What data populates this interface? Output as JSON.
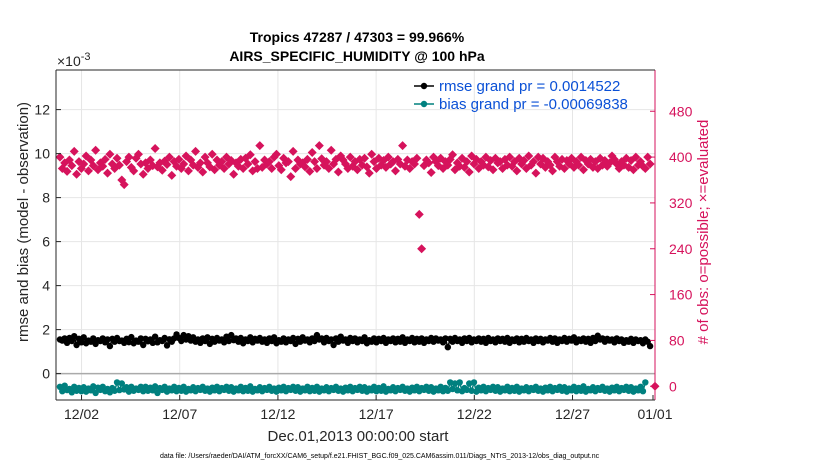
{
  "chart_data": {
    "type": "scatter",
    "title": "Tropics 47287 / 47303 = 99.966%",
    "subtitle": "AIRS_SPECIFIC_HUMIDITY @ 100 hPa",
    "xlabel": "Dec.01,2013 00:00:00 start",
    "ylabel_left": "rmse and bias (model - observation)",
    "ylabel_right": "# of obs: o=possible; ×=evaluated",
    "left_exponent": "×10",
    "left_exponent_power": "-3",
    "ylim_left": [
      -0.0012,
      0.0138
    ],
    "ylim_right": [
      -24,
      552
    ],
    "xlim": [
      0.7,
      31.2
    ],
    "left_ticks": [
      0,
      2,
      4,
      6,
      8,
      10,
      12
    ],
    "right_ticks": [
      0,
      80,
      160,
      240,
      320,
      400,
      480
    ],
    "x_ticks": [
      {
        "value": 2,
        "label": "12/02"
      },
      {
        "value": 7,
        "label": "12/07"
      },
      {
        "value": 12,
        "label": "12/12"
      },
      {
        "value": 17,
        "label": "12/17"
      },
      {
        "value": 22,
        "label": "12/22"
      },
      {
        "value": 27,
        "label": "12/27"
      },
      {
        "value": 32,
        "label": "01/01"
      }
    ],
    "legend": [
      {
        "label": "rmse grand pr = 0.0014522",
        "color": "#000000"
      },
      {
        "label": "bias grand pr = -0.00069838",
        "color": "#00807f"
      }
    ],
    "colors": {
      "rmse": "#000000",
      "bias": "#00807f",
      "obs": "#d6135c",
      "zero_line": "#aaaaaa"
    },
    "possible_obs": [
      400,
      380,
      390,
      375,
      395,
      385,
      410,
      370,
      392,
      380,
      388,
      402,
      376,
      395,
      385,
      412,
      378,
      390,
      384,
      396,
      372,
      405,
      388,
      380,
      398,
      386,
      360,
      352,
      392,
      400,
      382,
      376,
      398,
      405,
      388,
      370,
      390,
      380,
      395,
      385,
      415,
      383,
      390,
      377,
      393,
      387,
      400,
      368,
      392,
      384,
      396,
      380,
      388,
      402,
      376,
      395,
      386,
      410,
      382,
      390,
      374,
      400,
      390,
      383,
      405,
      378,
      395,
      386,
      392,
      380,
      400,
      388,
      394,
      370,
      390,
      384,
      396,
      380,
      398,
      388,
      404,
      376,
      392,
      380,
      420,
      382,
      395,
      388,
      392,
      380,
      400,
      405,
      385,
      378,
      398,
      390,
      392,
      366,
      410,
      380,
      395,
      388,
      390,
      383,
      396,
      375,
      408,
      392,
      380,
      420,
      397,
      386,
      392,
      380,
      412,
      388,
      396,
      374,
      402,
      395,
      388,
      380,
      400,
      384,
      392,
      378,
      396,
      386,
      398,
      383,
      372,
      405,
      392,
      380,
      398,
      386,
      394,
      382,
      400,
      388,
      392,
      376,
      396,
      388,
      420,
      384,
      395,
      380,
      392,
      388,
      398,
      300,
      240,
      385,
      395,
      390,
      373,
      400,
      392,
      385,
      398,
      380,
      392,
      386,
      396,
      404,
      378,
      390,
      384,
      398,
      382,
      392,
      374,
      402,
      388,
      396,
      380,
      392,
      386,
      400,
      383,
      394,
      378,
      398,
      390,
      392,
      380,
      396,
      386,
      400,
      384,
      392,
      376,
      398,
      388,
      394,
      380,
      402,
      386,
      392,
      372,
      400,
      388,
      398,
      382,
      392,
      386,
      376,
      400,
      392,
      384,
      396,
      380,
      394,
      388,
      398,
      382,
      392,
      386,
      400,
      378,
      394,
      388,
      396,
      382,
      392,
      380,
      398,
      386,
      394,
      384,
      390,
      402,
      396,
      388,
      380,
      392,
      386,
      398,
      382,
      394,
      378,
      400,
      386,
      392,
      384,
      380,
      400,
      388
    ],
    "rmse": [
      0.00155,
      0.0015,
      0.0016,
      0.0014,
      0.00162,
      0.00148,
      0.0017,
      0.0013,
      0.00158,
      0.00142,
      0.00165,
      0.00138,
      0.0015,
      0.00145,
      0.0016,
      0.00135,
      0.00152,
      0.00148,
      0.0016,
      0.00142,
      0.00155,
      0.00125,
      0.00158,
      0.00145,
      0.00162,
      0.00148,
      0.0015,
      0.0014,
      0.00158,
      0.00143,
      0.00166,
      0.00138,
      0.0015,
      0.00145,
      0.0016,
      0.0013,
      0.00158,
      0.00147,
      0.00155,
      0.0014,
      0.00168,
      0.00142,
      0.00152,
      0.00148,
      0.00162,
      0.00128,
      0.00156,
      0.00145,
      0.0016,
      0.00178,
      0.00162,
      0.00148,
      0.00175,
      0.00155,
      0.0017,
      0.0015,
      0.00165,
      0.00145,
      0.00155,
      0.0014,
      0.0016,
      0.00148,
      0.00165,
      0.00135,
      0.00158,
      0.00145,
      0.00162,
      0.0015,
      0.00155,
      0.00142,
      0.00168,
      0.00148,
      0.00175,
      0.00152,
      0.0016,
      0.00145,
      0.00162,
      0.00138,
      0.00155,
      0.00148,
      0.00165,
      0.00142,
      0.00158,
      0.0015,
      0.00162,
      0.00145,
      0.00155,
      0.0014,
      0.0016,
      0.00148,
      0.00165,
      0.00138,
      0.00152,
      0.00145,
      0.0016,
      0.00142,
      0.00155,
      0.00148,
      0.00162,
      0.00135,
      0.00158,
      0.00145,
      0.00165,
      0.0015,
      0.00155,
      0.00142,
      0.0016,
      0.00148,
      0.00175,
      0.00155,
      0.0016,
      0.00142,
      0.00162,
      0.00148,
      0.00155,
      0.0013,
      0.0016,
      0.00145,
      0.00168,
      0.0015,
      0.00155,
      0.0014,
      0.00162,
      0.00148,
      0.0016,
      0.00142,
      0.00155,
      0.00148,
      0.00165,
      0.00138,
      0.00152,
      0.00145,
      0.0016,
      0.00142,
      0.00158,
      0.00148,
      0.00162,
      0.0014,
      0.00155,
      0.00148,
      0.0016,
      0.00142,
      0.00158,
      0.00145,
      0.00165,
      0.0014,
      0.00155,
      0.00148,
      0.00162,
      0.00142,
      0.00158,
      0.00145,
      0.0016,
      0.0014,
      0.00155,
      0.00148,
      0.00162,
      0.00145,
      0.0016,
      0.0015,
      0.00155,
      0.00142,
      0.0016,
      0.0012,
      0.00158,
      0.00145,
      0.00162,
      0.00148,
      0.00155,
      0.0014,
      0.0016,
      0.00148,
      0.00162,
      0.00142,
      0.00155,
      0.00148,
      0.0016,
      0.00145,
      0.00158,
      0.0014,
      0.00162,
      0.00148,
      0.00155,
      0.00142,
      0.0016,
      0.00148,
      0.00158,
      0.00145,
      0.00162,
      0.0014,
      0.00155,
      0.00148,
      0.0016,
      0.00142,
      0.00158,
      0.00145,
      0.00162,
      0.00148,
      0.00155,
      0.0014,
      0.0016,
      0.00148,
      0.00158,
      0.00142,
      0.00155,
      0.0015,
      0.00162,
      0.00145,
      0.0016,
      0.0014,
      0.00155,
      0.00148,
      0.00162,
      0.00145,
      0.00158,
      0.0015,
      0.00165,
      0.00142,
      0.00155,
      0.00148,
      0.0016,
      0.00145,
      0.00158,
      0.0014,
      0.00162,
      0.00148,
      0.00172,
      0.00155,
      0.0016,
      0.00145,
      0.00158,
      0.0015,
      0.00155,
      0.00142,
      0.0016,
      0.00148,
      0.00155,
      0.0014,
      0.00152,
      0.00145,
      0.00158,
      0.0014,
      0.00155,
      0.00148,
      0.00152,
      0.00138,
      0.00155,
      0.00145,
      0.00125
    ],
    "bias": [
      -0.0006,
      -0.0008,
      -0.00055,
      -0.00075,
      -0.0007,
      -0.00085,
      -0.0006,
      -0.00078,
      -0.00065,
      -0.0008,
      -0.00062,
      -0.00082,
      -0.00068,
      -0.00076,
      -0.00058,
      -0.00088,
      -0.00064,
      -0.00074,
      -0.0006,
      -0.0008,
      -0.0007,
      -0.00085,
      -0.00066,
      -0.00078,
      -0.0004,
      -0.00075,
      -0.00045,
      -0.00072,
      -0.00062,
      -0.00082,
      -0.0006,
      -0.00078,
      -0.00068,
      -0.00074,
      -0.0006,
      -0.0008,
      -0.0006,
      -0.00078,
      -0.00064,
      -0.00076,
      -0.00058,
      -0.00088,
      -0.00066,
      -0.00074,
      -0.0006,
      -0.00082,
      -0.00068,
      -0.00076,
      -0.0006,
      -0.0008,
      -0.00065,
      -0.00078,
      -0.0006,
      -0.00082,
      -0.0007,
      -0.00076,
      -0.00062,
      -0.0008,
      -0.00066,
      -0.00074,
      -0.0006,
      -0.00078,
      -0.00068,
      -0.00082,
      -0.00064,
      -0.00076,
      -0.0006,
      -0.0008,
      -0.00066,
      -0.00074,
      -0.0006,
      -0.00078,
      -0.00062,
      -0.00082,
      -0.00068,
      -0.00076,
      -0.0006,
      -0.0008,
      -0.00065,
      -0.00078,
      -0.00058,
      -0.00082,
      -0.0007,
      -0.00076,
      -0.00062,
      -0.0008,
      -0.00066,
      -0.00074,
      -0.0006,
      -0.00078,
      -0.00068,
      -0.00082,
      -0.00064,
      -0.00076,
      -0.0006,
      -0.0008,
      -0.00066,
      -0.00074,
      -0.0006,
      -0.00078,
      -0.00062,
      -0.00082,
      -0.00068,
      -0.00076,
      -0.0006,
      -0.0008,
      -0.00065,
      -0.00078,
      -0.0006,
      -0.00082,
      -0.00068,
      -0.00076,
      -0.00062,
      -0.0008,
      -0.00066,
      -0.00074,
      -0.0006,
      -0.00078,
      -0.00068,
      -0.00082,
      -0.00064,
      -0.00076,
      -0.0006,
      -0.0008,
      -0.00066,
      -0.00074,
      -0.0006,
      -0.00078,
      -0.00062,
      -0.00082,
      -0.00068,
      -0.00076,
      -0.0006,
      -0.0008,
      -0.00065,
      -0.00078,
      -0.00058,
      -0.00082,
      -0.0007,
      -0.00076,
      -0.00062,
      -0.0008,
      -0.00066,
      -0.00074,
      -0.0006,
      -0.00078,
      -0.00068,
      -0.00082,
      -0.00064,
      -0.00076,
      -0.0006,
      -0.0008,
      -0.00066,
      -0.00074,
      -0.0006,
      -0.00078,
      -0.00062,
      -0.00082,
      -0.00068,
      -0.00076,
      -0.0006,
      -0.0008,
      -0.00065,
      -0.00078,
      -0.0004,
      -0.0007,
      -0.00045,
      -0.00076,
      -0.0004,
      -0.0008,
      -0.00066,
      -0.00074,
      -0.00045,
      -0.00078,
      -0.0004,
      -0.00082,
      -0.00064,
      -0.00076,
      -0.0006,
      -0.0008,
      -0.00066,
      -0.00074,
      -0.0006,
      -0.00078,
      -0.00062,
      -0.00082,
      -0.00068,
      -0.00076,
      -0.0006,
      -0.0008,
      -0.00065,
      -0.00078,
      -0.0006,
      -0.00082,
      -0.00068,
      -0.00076,
      -0.00062,
      -0.0008,
      -0.00066,
      -0.00074,
      -0.0006,
      -0.00078,
      -0.00068,
      -0.00082,
      -0.00064,
      -0.00076,
      -0.0006,
      -0.0008,
      -0.00066,
      -0.00074,
      -0.0006,
      -0.00078,
      -0.00062,
      -0.00082,
      -0.00068,
      -0.00076,
      -0.0006,
      -0.0008,
      -0.00065,
      -0.00078,
      -0.00058,
      -0.00082,
      -0.0007,
      -0.00076,
      -0.00062,
      -0.0008,
      -0.00066,
      -0.00074,
      -0.0006,
      -0.00078,
      -0.00068,
      -0.00082,
      -0.00064,
      -0.00076,
      -0.0006,
      -0.0008,
      -0.00066,
      -0.00074,
      -0.0006,
      -0.00078,
      -0.00062,
      -0.00082,
      -0.00068,
      -0.00076,
      -0.0006,
      -0.0008,
      -0.0004
    ],
    "last_possible_obs": 0,
    "footer": "data file: /Users/raeder/DAI/ATM_forcXX/CAM6_setup/f.e21.FHIST_BGC.f09_025.CAM6assim.011/Diags_NTrS_2013-12/obs_diag_output.nc"
  }
}
